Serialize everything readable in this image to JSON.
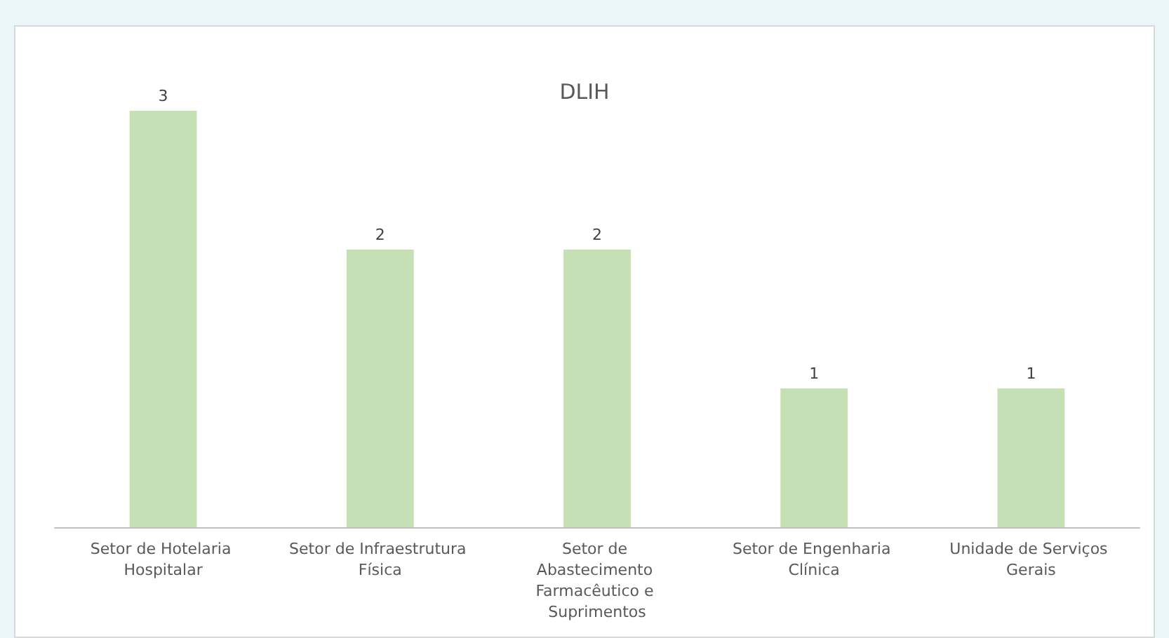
{
  "chart_data": {
    "type": "bar",
    "title": "DLIH",
    "categories": [
      "Setor de Hotelaria Hospitalar",
      "Setor de Infraestrutura Física",
      "Setor de Abastecimento Farmacêutico e Suprimentos",
      "Setor de Engenharia Clínica",
      "Unidade de Serviços Gerais"
    ],
    "values": [
      3,
      2,
      2,
      1,
      1
    ],
    "color": "#c5e0b4",
    "data_labels": true
  }
}
